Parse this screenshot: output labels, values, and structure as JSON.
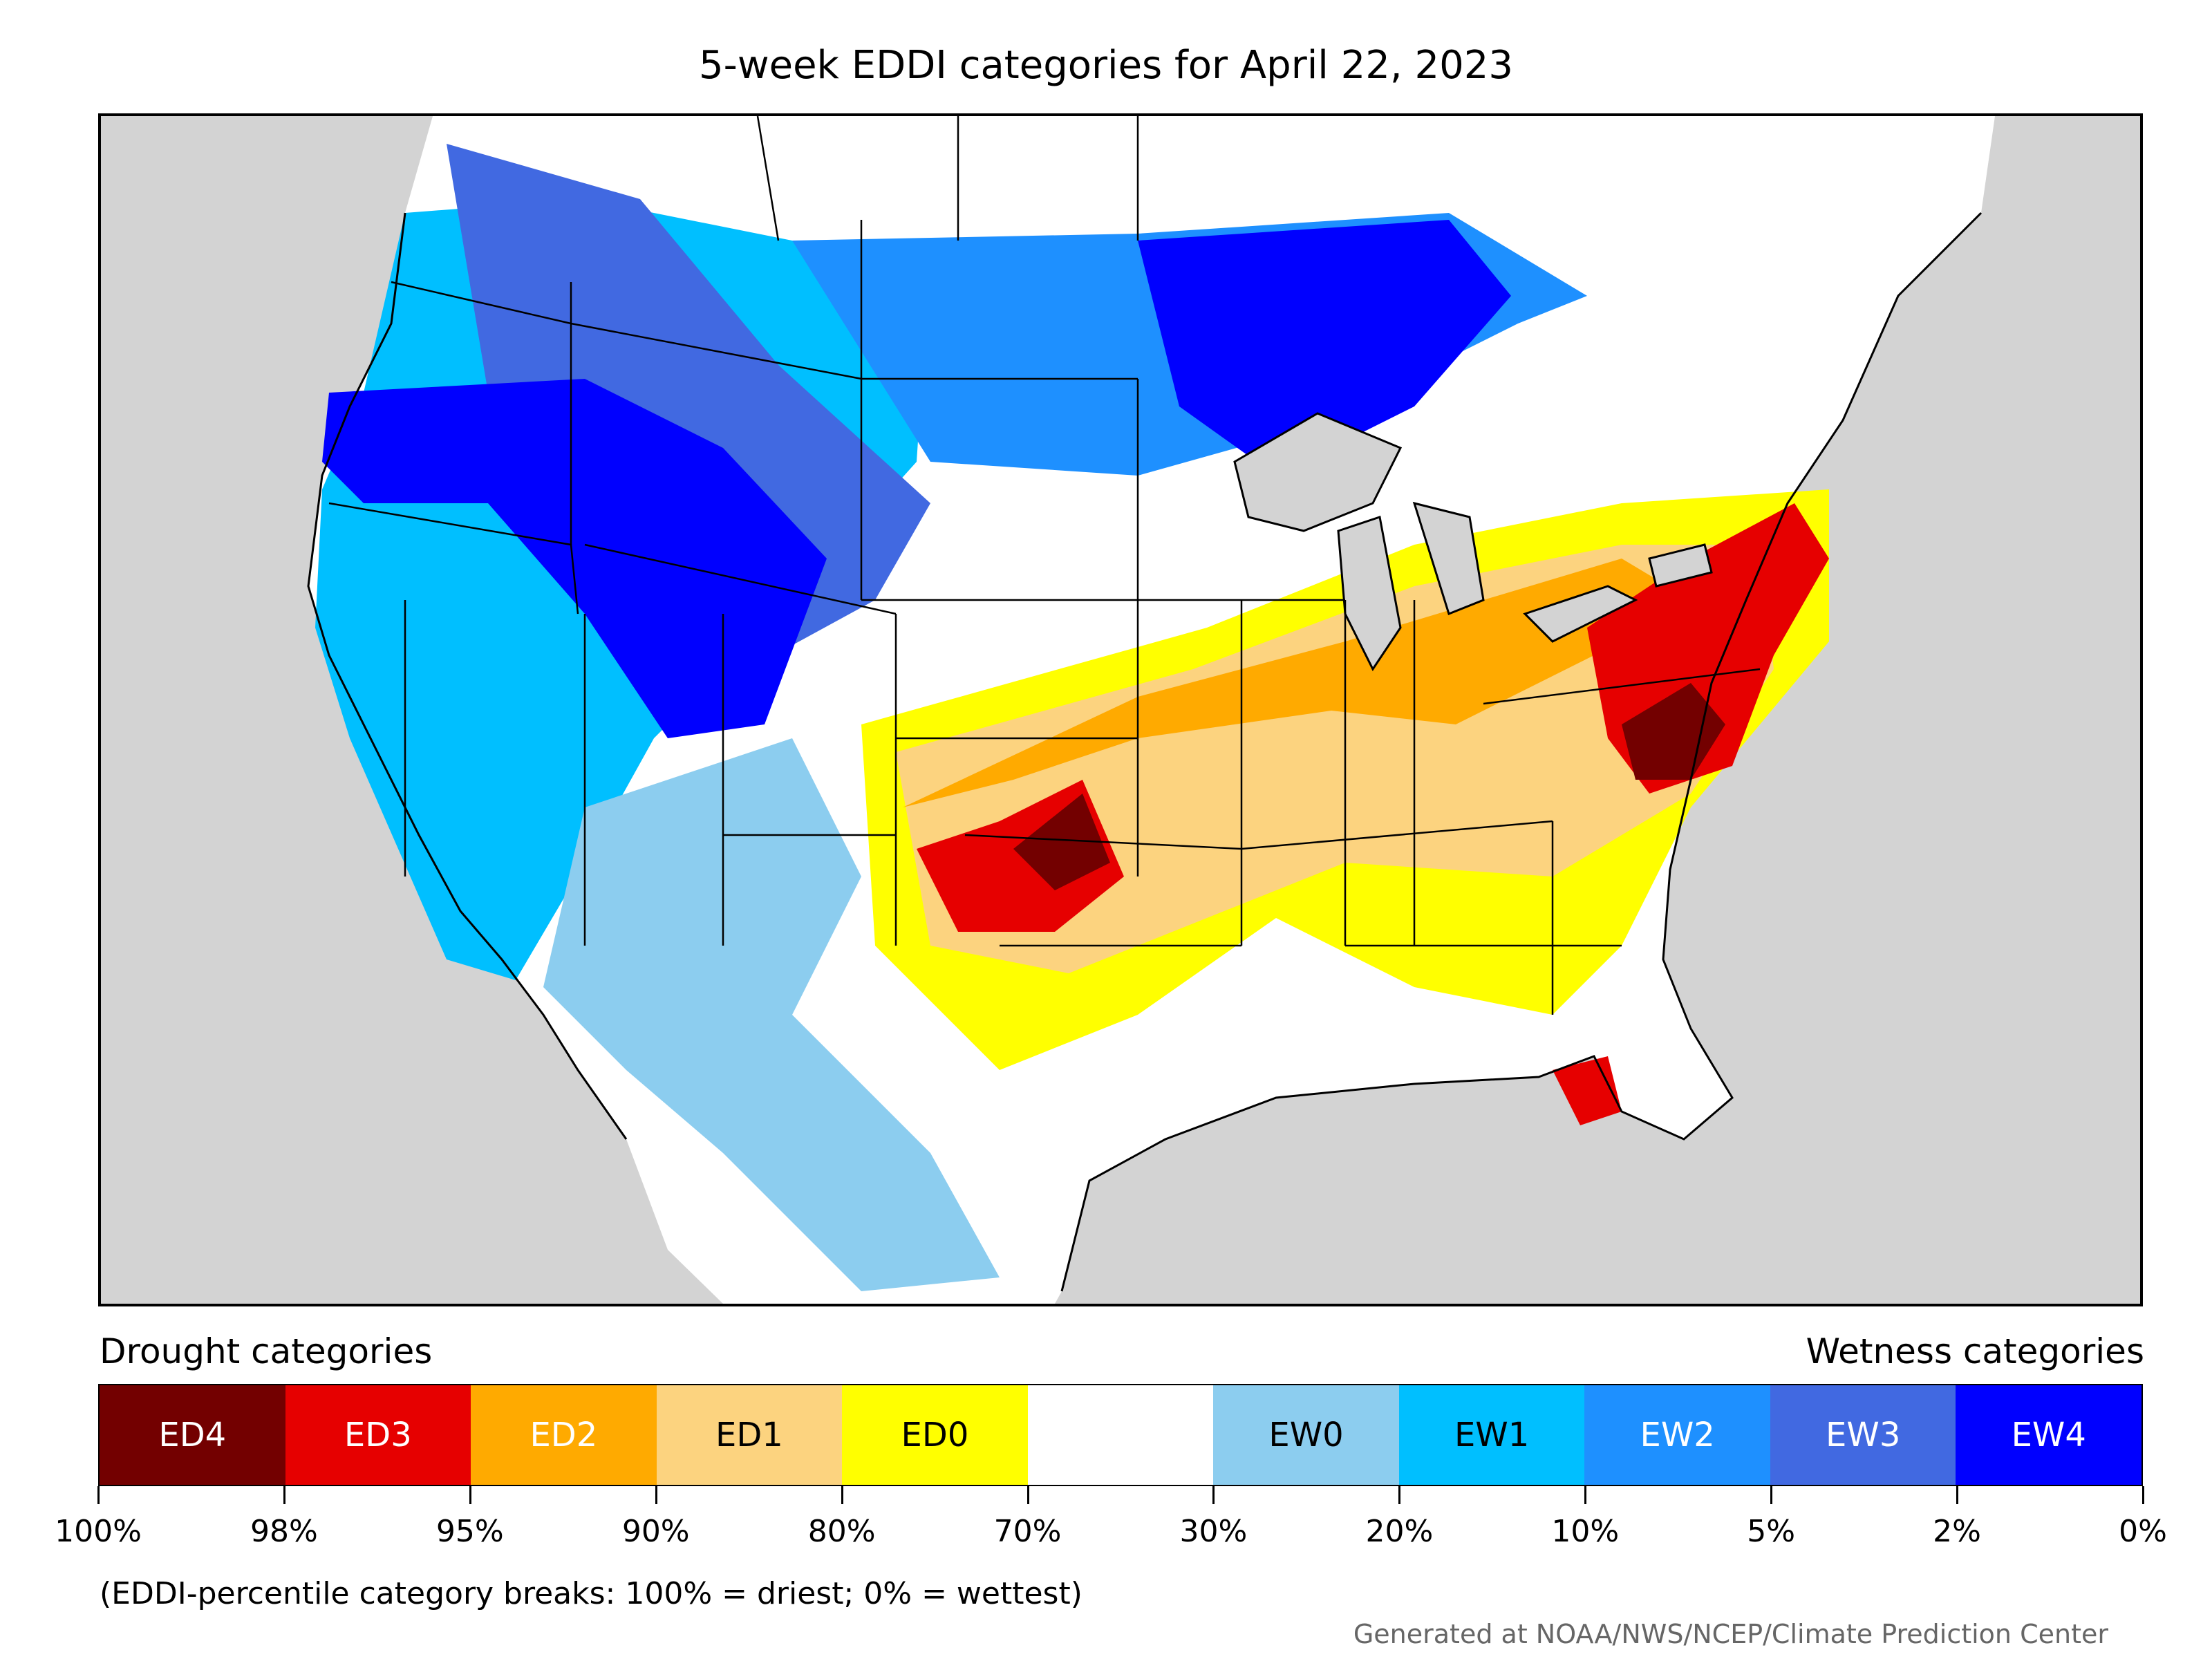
{
  "title": "5-week EDDI categories for April 22, 2023",
  "legend": {
    "drought_heading": "Drought categories",
    "wetness_heading": "Wetness categories",
    "categories": [
      {
        "label": "ED4",
        "color": "#730000",
        "text_color": "#ffffff"
      },
      {
        "label": "ED3",
        "color": "#e60000",
        "text_color": "#ffffff"
      },
      {
        "label": "ED2",
        "color": "#ffaa00",
        "text_color": "#ffffff"
      },
      {
        "label": "ED1",
        "color": "#fcd37f",
        "text_color": "#000000"
      },
      {
        "label": "ED0",
        "color": "#ffff00",
        "text_color": "#000000"
      },
      {
        "label": "",
        "color": "#ffffff",
        "text_color": "#000000"
      },
      {
        "label": "EW0",
        "color": "#8ccdef",
        "text_color": "#000000"
      },
      {
        "label": "EW1",
        "color": "#00bfff",
        "text_color": "#000000"
      },
      {
        "label": "EW2",
        "color": "#1e90ff",
        "text_color": "#ffffff"
      },
      {
        "label": "EW3",
        "color": "#4169e1",
        "text_color": "#ffffff"
      },
      {
        "label": "EW4",
        "color": "#0000ff",
        "text_color": "#ffffff"
      }
    ],
    "breaks": [
      "100%",
      "98%",
      "95%",
      "90%",
      "80%",
      "70%",
      "30%",
      "20%",
      "10%",
      "5%",
      "2%",
      "0%"
    ]
  },
  "note": "(EDDI-percentile category breaks: 100% = driest; 0% = wettest)",
  "credit": "Generated at NOAA/NWS/NCEP/Climate Prediction Center",
  "colors": {
    "ocean": "#d3d3d3",
    "border": "#000000"
  }
}
